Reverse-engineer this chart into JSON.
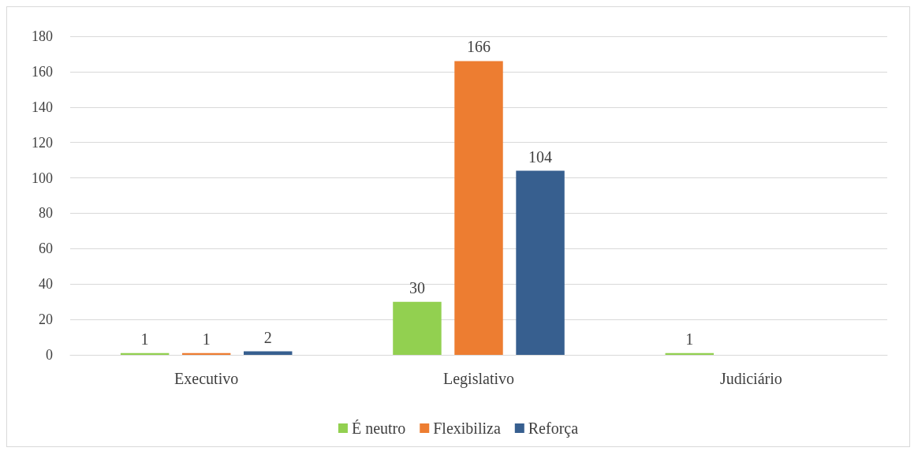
{
  "chart_data": {
    "type": "bar",
    "categories": [
      "Executivo",
      "Legislativo",
      "Judiciário"
    ],
    "series": [
      {
        "name": "É neutro",
        "color": "#92d050",
        "values": [
          1,
          30,
          1
        ]
      },
      {
        "name": "Flexibiliza",
        "color": "#ed7d31",
        "values": [
          1,
          166,
          null
        ]
      },
      {
        "name": "Reforça",
        "color": "#375f8f",
        "values": [
          2,
          104,
          null
        ]
      }
    ],
    "ylim": [
      0,
      180
    ],
    "yticks": [
      0,
      20,
      40,
      60,
      80,
      100,
      120,
      140,
      160,
      180
    ],
    "grid": "y",
    "legend": "bottom",
    "data_labels": true
  }
}
